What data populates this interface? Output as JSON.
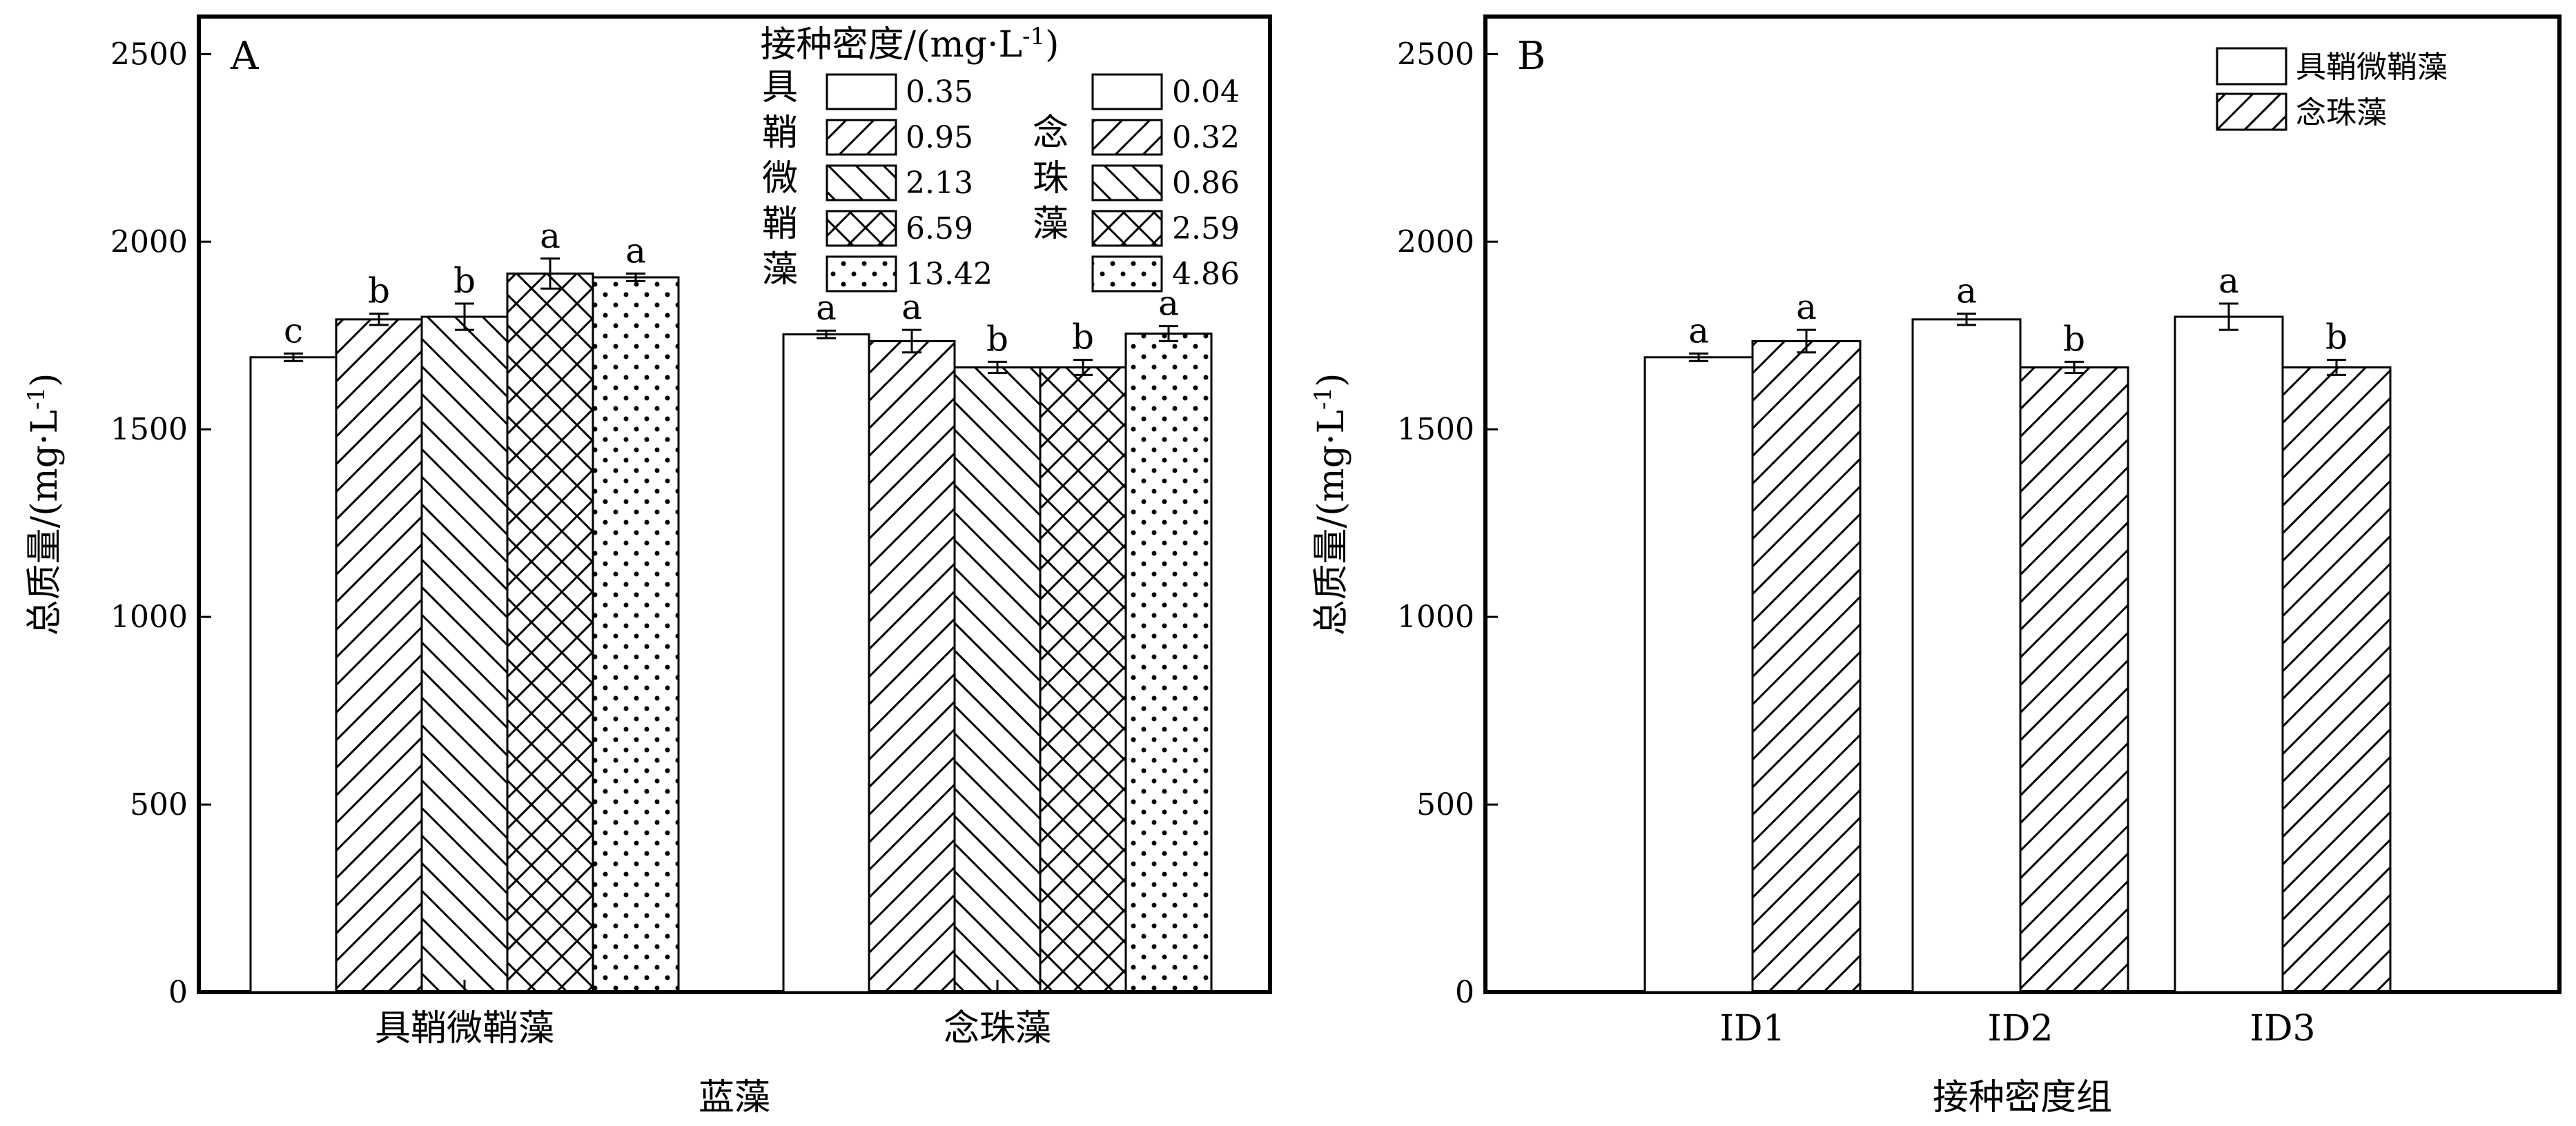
{
  "chart_data": [
    {
      "type": "bar",
      "panel_label": "A",
      "ylabel": "总质量/(mg·L⁻¹)",
      "xlabel": "蓝藻",
      "ylim": [
        0,
        2600
      ],
      "yticks": [
        0,
        500,
        1000,
        1500,
        2000,
        2500
      ],
      "legend": {
        "title": "接种密度/(mg·L⁻¹)",
        "groups": [
          {
            "name": "具鞘微鞘藻",
            "entries": [
              "0.35",
              "0.95",
              "2.13",
              "6.59",
              "13.42"
            ]
          },
          {
            "name": "念珠藻",
            "entries": [
              "0.04",
              "0.32",
              "0.86",
              "2.59",
              "4.86"
            ]
          }
        ]
      },
      "patterns": [
        "none",
        "hatch-forward",
        "hatch-back",
        "cross",
        "dots"
      ],
      "groups": [
        {
          "name": "具鞘微鞘藻",
          "values": [
            1692,
            1793,
            1800,
            1915,
            1905
          ],
          "errors": [
            10,
            15,
            35,
            40,
            10
          ],
          "labels": [
            "c",
            "b",
            "b",
            "a",
            "a"
          ]
        },
        {
          "name": "念珠藻",
          "values": [
            1753,
            1735,
            1665,
            1665,
            1755
          ],
          "errors": [
            10,
            30,
            15,
            20,
            20
          ],
          "labels": [
            "a",
            "a",
            "b",
            "b",
            "a"
          ]
        }
      ]
    },
    {
      "type": "bar",
      "panel_label": "B",
      "ylabel": "总质量/(mg·L⁻¹)",
      "xlabel": "接种密度组",
      "ylim": [
        0,
        2600
      ],
      "yticks": [
        0,
        500,
        1000,
        1500,
        2000,
        2500
      ],
      "categories": [
        "ID1",
        "ID2",
        "ID3"
      ],
      "series": [
        {
          "name": "具鞘微鞘藻",
          "pattern": "none",
          "values": [
            1692,
            1793,
            1800
          ],
          "errors": [
            10,
            15,
            35
          ],
          "labels": [
            "a",
            "a",
            "a"
          ]
        },
        {
          "name": "念珠藻",
          "pattern": "hatch-forward",
          "values": [
            1735,
            1665,
            1665
          ],
          "errors": [
            30,
            15,
            20
          ],
          "labels": [
            "a",
            "b",
            "b"
          ]
        }
      ]
    }
  ]
}
